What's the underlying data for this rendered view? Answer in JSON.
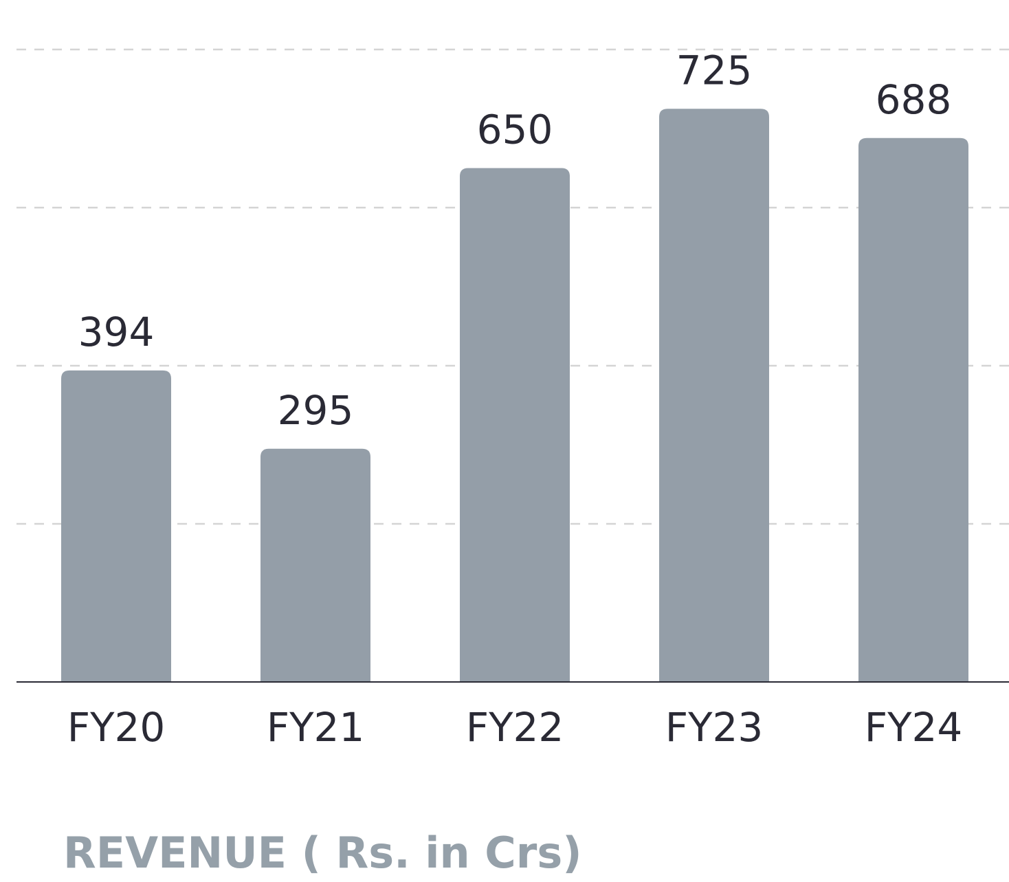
{
  "chart_data": {
    "type": "bar",
    "title": "REVENUE ( Rs. in Crs)",
    "categories": [
      "FY20",
      "FY21",
      "FY22",
      "FY23",
      "FY24"
    ],
    "values": [
      394,
      295,
      650,
      725,
      688
    ],
    "color": "#949ea8",
    "ylim": [
      0,
      800
    ],
    "yticks": [
      0,
      200,
      400,
      600,
      800
    ],
    "grid": true
  }
}
